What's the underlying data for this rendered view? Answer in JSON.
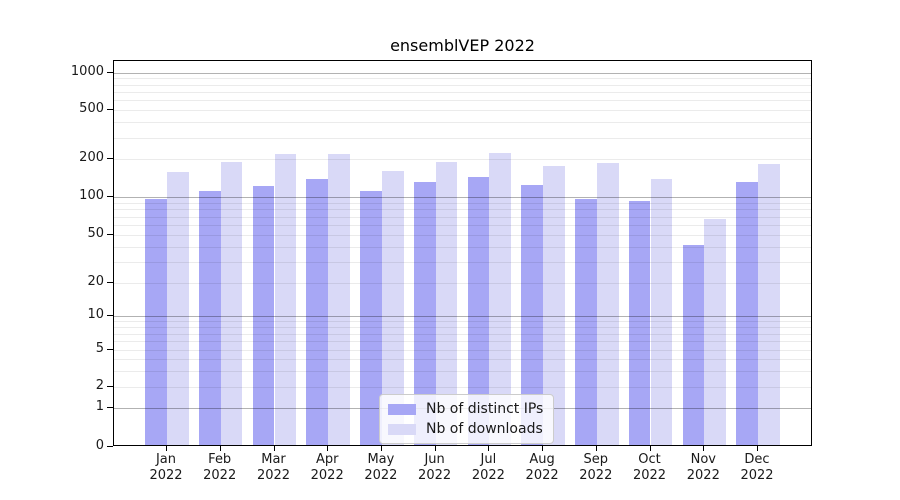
{
  "chart_data": {
    "type": "bar",
    "title": "ensemblVEP 2022",
    "yscale": "log (linear segment from 0 to 1)",
    "grid": true,
    "legend_position": "lower center",
    "ylim": [
      0,
      1250
    ],
    "yticks": [
      "0",
      "1",
      "2",
      "5",
      "10",
      "20",
      "50",
      "100",
      "200",
      "500",
      "1000"
    ],
    "categories": [
      {
        "month": "Jan",
        "year": "2022"
      },
      {
        "month": "Feb",
        "year": "2022"
      },
      {
        "month": "Mar",
        "year": "2022"
      },
      {
        "month": "Apr",
        "year": "2022"
      },
      {
        "month": "May",
        "year": "2022"
      },
      {
        "month": "Jun",
        "year": "2022"
      },
      {
        "month": "Jul",
        "year": "2022"
      },
      {
        "month": "Aug",
        "year": "2022"
      },
      {
        "month": "Sep",
        "year": "2022"
      },
      {
        "month": "Oct",
        "year": "2022"
      },
      {
        "month": "Nov",
        "year": "2022"
      },
      {
        "month": "Dec",
        "year": "2022"
      }
    ],
    "series": [
      {
        "name": "Nb of distinct IPs",
        "color": "#a7a7f5",
        "values": [
          93,
          108,
          118,
          135,
          108,
          127,
          140,
          120,
          93,
          89,
          40,
          127
        ]
      },
      {
        "name": "Nb of downloads",
        "color": "#d9d9f7",
        "values": [
          153,
          183,
          212,
          212,
          156,
          184,
          216,
          171,
          182,
          135,
          65,
          178
        ]
      }
    ]
  }
}
